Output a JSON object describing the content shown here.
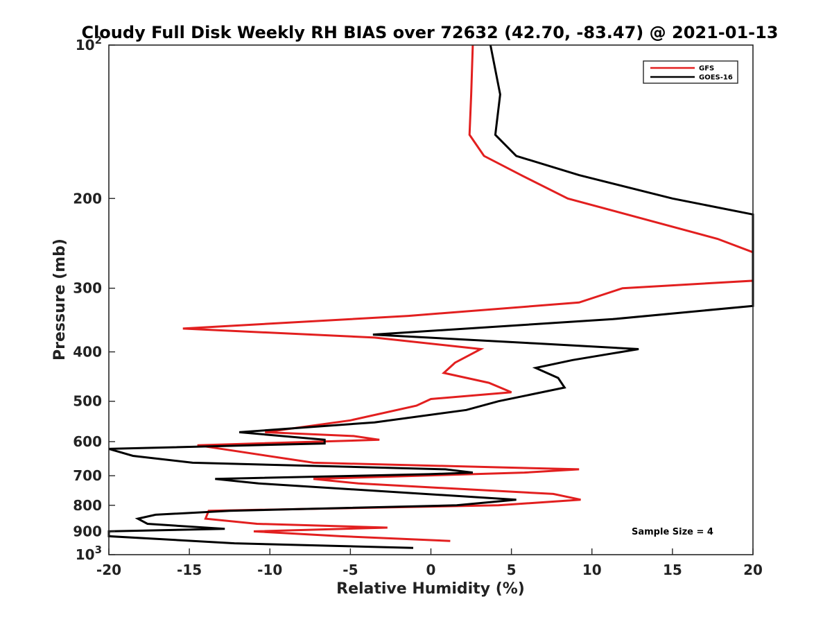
{
  "chart_data": {
    "type": "line",
    "title": "Cloudy Full Disk Weekly RH BIAS over 72632 (42.70, -83.47) @ 2021-01-13",
    "xlabel": "Relative Humidity (%)",
    "ylabel": "Pressure (mb)",
    "xlim": [
      -20,
      20
    ],
    "ylim": [
      100,
      1000
    ],
    "y_scale": "log",
    "y_reversed": true,
    "xticks": [
      -20,
      -15,
      -10,
      -5,
      0,
      5,
      10,
      15,
      20
    ],
    "yticks": [
      {
        "value": 100,
        "label": "10",
        "sup": "2"
      },
      {
        "value": 200,
        "label": "200",
        "sup": ""
      },
      {
        "value": 300,
        "label": "300",
        "sup": ""
      },
      {
        "value": 400,
        "label": "400",
        "sup": ""
      },
      {
        "value": 500,
        "label": "500",
        "sup": ""
      },
      {
        "value": 600,
        "label": "600",
        "sup": ""
      },
      {
        "value": 700,
        "label": "700",
        "sup": ""
      },
      {
        "value": 800,
        "label": "800",
        "sup": ""
      },
      {
        "value": 900,
        "label": "900",
        "sup": ""
      },
      {
        "value": 1000,
        "label": "10",
        "sup": "3"
      }
    ],
    "grid": false,
    "legend_position": "top-right",
    "annotation": "Sample Size = 4",
    "series": [
      {
        "name": "GFS",
        "color": "#e21f1f",
        "points": [
          [
            2.6,
            100
          ],
          [
            2.5,
            125
          ],
          [
            2.4,
            150
          ],
          [
            3.3,
            165
          ],
          [
            5.6,
            180
          ],
          [
            8.5,
            200
          ],
          [
            17.8,
            240
          ],
          [
            20,
            255
          ],
          [
            20,
            290
          ],
          [
            11.9,
            300
          ],
          [
            9.2,
            320
          ],
          [
            -1.4,
            340
          ],
          [
            -15.4,
            360
          ],
          [
            -3.5,
            375
          ],
          [
            3.1,
            395
          ],
          [
            1.5,
            420
          ],
          [
            0.8,
            440
          ],
          [
            3.6,
            460
          ],
          [
            5.0,
            480
          ],
          [
            0,
            495
          ],
          [
            -0.9,
            510
          ],
          [
            -5,
            545
          ],
          [
            -10.3,
            575
          ],
          [
            -4.8,
            585
          ],
          [
            -3.2,
            595
          ],
          [
            -14.5,
            610
          ],
          [
            -7.3,
            660
          ],
          [
            9.2,
            680
          ],
          [
            5.8,
            690
          ],
          [
            -7.3,
            710
          ],
          [
            -4.5,
            725
          ],
          [
            7.6,
            760
          ],
          [
            9.3,
            780
          ],
          [
            4.2,
            800
          ],
          [
            -13.8,
            820
          ],
          [
            -14,
            850
          ],
          [
            -10.8,
            870
          ],
          [
            -2.7,
            885
          ],
          [
            -11,
            900
          ],
          [
            -5.6,
            920
          ],
          [
            1.2,
            940
          ]
        ]
      },
      {
        "name": "GOES-16",
        "color": "#000000",
        "points": [
          [
            3.7,
            100
          ],
          [
            4.3,
            125
          ],
          [
            4.0,
            150
          ],
          [
            5.3,
            165
          ],
          [
            9.2,
            180
          ],
          [
            15,
            200
          ],
          [
            20,
            215
          ],
          [
            20,
            325
          ],
          [
            11.3,
            345
          ],
          [
            -3.6,
            370
          ],
          [
            6.5,
            385
          ],
          [
            12.9,
            395
          ],
          [
            8.8,
            415
          ],
          [
            6.5,
            430
          ],
          [
            7.9,
            450
          ],
          [
            8.3,
            470
          ],
          [
            4.2,
            500
          ],
          [
            2.2,
            520
          ],
          [
            -3.5,
            550
          ],
          [
            -11.9,
            575
          ],
          [
            -6.6,
            595
          ],
          [
            -6.6,
            605
          ],
          [
            -20,
            620
          ],
          [
            -18.5,
            640
          ],
          [
            -14.8,
            660
          ],
          [
            0.9,
            680
          ],
          [
            2.6,
            690
          ],
          [
            -0.1,
            695
          ],
          [
            -13.4,
            710
          ],
          [
            -10.7,
            725
          ],
          [
            5.3,
            780
          ],
          [
            1.6,
            800
          ],
          [
            -12.5,
            820
          ],
          [
            -17.1,
            835
          ],
          [
            -18.2,
            850
          ],
          [
            -17.6,
            870
          ],
          [
            -12.8,
            890
          ],
          [
            -20,
            900
          ],
          [
            -20,
            920
          ],
          [
            -12.2,
            950
          ],
          [
            -1.1,
            970
          ]
        ]
      }
    ]
  }
}
